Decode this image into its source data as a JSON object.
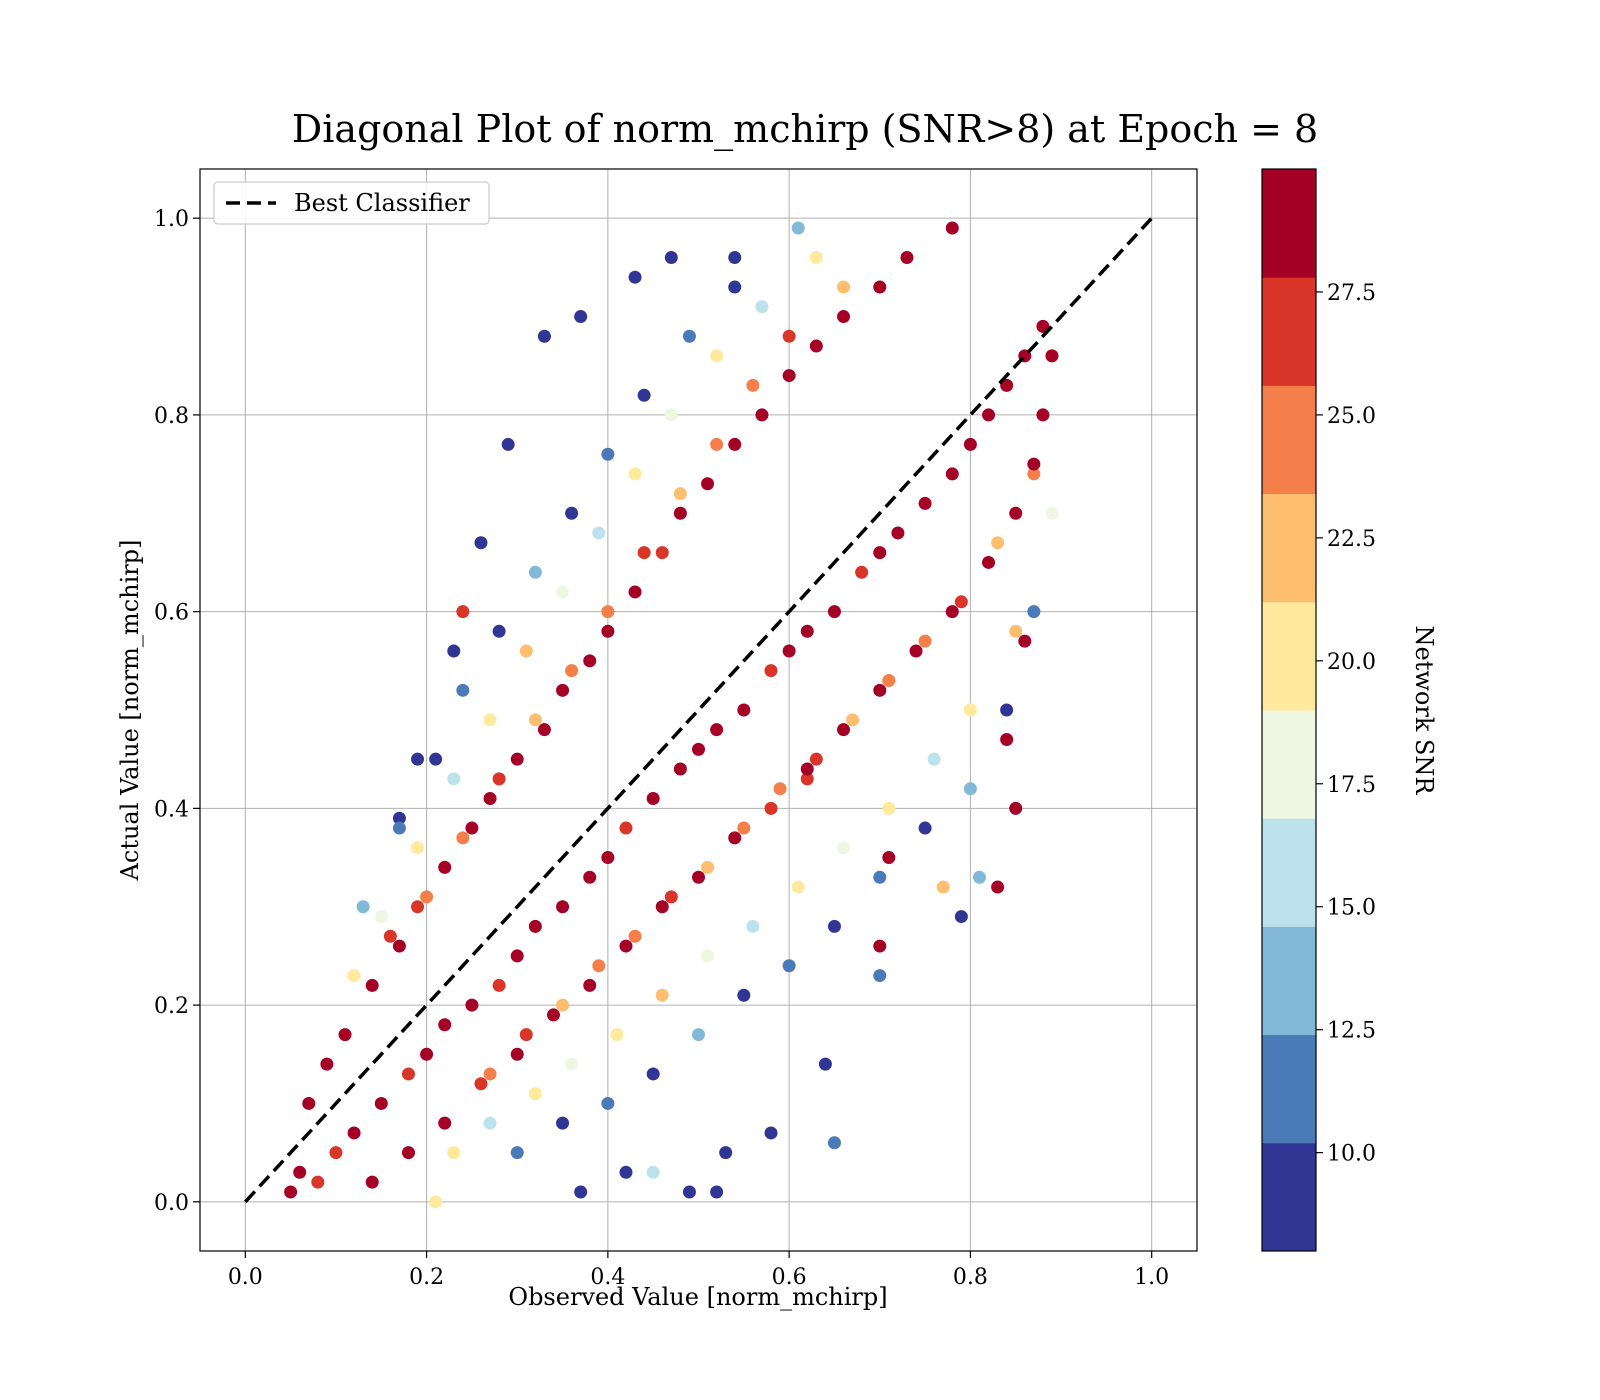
{
  "chart_data": {
    "type": "scatter",
    "title": "Diagonal Plot of norm_mchirp (SNR>8) at Epoch = 8",
    "xlabel": "Observed Value [norm_mchirp]",
    "ylabel": "Actual Value [norm_mchirp]",
    "xlim": [
      -0.05,
      1.05
    ],
    "ylim": [
      -0.05,
      1.05
    ],
    "xticks": [
      0.0,
      0.2,
      0.4,
      0.6,
      0.8,
      1.0
    ],
    "yticks": [
      0.0,
      0.2,
      0.4,
      0.6,
      0.8,
      1.0
    ],
    "xtick_labels": [
      "0.0",
      "0.2",
      "0.4",
      "0.6",
      "0.8",
      "1.0"
    ],
    "ytick_labels": [
      "0.0",
      "0.2",
      "0.4",
      "0.6",
      "0.8",
      "1.0"
    ],
    "grid": true,
    "legend": {
      "position": "top-left",
      "entries": [
        {
          "label": "Best Classifier",
          "style": "dashed",
          "color": "#000000"
        }
      ]
    },
    "reference_line": {
      "label": "Best Classifier",
      "x": [
        0.0,
        1.0
      ],
      "y": [
        0.0,
        1.0
      ]
    },
    "colorbar": {
      "label": "Network SNR",
      "range": [
        8.0,
        30.0
      ],
      "bins": 10,
      "ticks": [
        10.0,
        12.5,
        15.0,
        17.5,
        20.0,
        22.5,
        25.0,
        27.5
      ],
      "tick_labels": [
        "10.0",
        "12.5",
        "15.0",
        "17.5",
        "20.0",
        "22.5",
        "25.0",
        "27.5"
      ],
      "colors": [
        "#313695",
        "#4a7ab7",
        "#82b8d8",
        "#bee2ed",
        "#eef7e1",
        "#fee99d",
        "#fdbe70",
        "#f57f4a",
        "#d93529",
        "#a50026"
      ]
    },
    "points": [
      [
        0.05,
        0.01,
        28
      ],
      [
        0.06,
        0.03,
        29
      ],
      [
        0.08,
        0.02,
        27
      ],
      [
        0.1,
        0.05,
        26
      ],
      [
        0.12,
        0.07,
        28
      ],
      [
        0.15,
        0.1,
        29
      ],
      [
        0.18,
        0.13,
        27
      ],
      [
        0.2,
        0.15,
        29
      ],
      [
        0.22,
        0.18,
        28
      ],
      [
        0.25,
        0.2,
        29
      ],
      [
        0.28,
        0.22,
        27
      ],
      [
        0.3,
        0.25,
        29
      ],
      [
        0.32,
        0.28,
        28
      ],
      [
        0.35,
        0.3,
        29
      ],
      [
        0.38,
        0.33,
        28
      ],
      [
        0.4,
        0.35,
        29
      ],
      [
        0.42,
        0.38,
        27
      ],
      [
        0.45,
        0.41,
        29
      ],
      [
        0.48,
        0.44,
        28
      ],
      [
        0.5,
        0.46,
        29
      ],
      [
        0.52,
        0.48,
        28
      ],
      [
        0.55,
        0.5,
        29
      ],
      [
        0.58,
        0.54,
        27
      ],
      [
        0.6,
        0.56,
        29
      ],
      [
        0.62,
        0.58,
        28
      ],
      [
        0.65,
        0.6,
        29
      ],
      [
        0.68,
        0.64,
        27
      ],
      [
        0.7,
        0.66,
        29
      ],
      [
        0.72,
        0.68,
        28
      ],
      [
        0.75,
        0.71,
        29
      ],
      [
        0.78,
        0.74,
        28
      ],
      [
        0.8,
        0.77,
        29
      ],
      [
        0.82,
        0.8,
        28
      ],
      [
        0.84,
        0.83,
        29
      ],
      [
        0.86,
        0.86,
        28
      ],
      [
        0.88,
        0.89,
        29
      ],
      [
        0.07,
        0.1,
        29
      ],
      [
        0.09,
        0.14,
        28
      ],
      [
        0.11,
        0.17,
        29
      ],
      [
        0.14,
        0.22,
        28
      ],
      [
        0.17,
        0.26,
        29
      ],
      [
        0.19,
        0.3,
        27
      ],
      [
        0.22,
        0.34,
        29
      ],
      [
        0.25,
        0.38,
        28
      ],
      [
        0.27,
        0.41,
        29
      ],
      [
        0.3,
        0.45,
        28
      ],
      [
        0.33,
        0.48,
        29
      ],
      [
        0.35,
        0.52,
        28
      ],
      [
        0.38,
        0.55,
        29
      ],
      [
        0.4,
        0.58,
        28
      ],
      [
        0.43,
        0.62,
        29
      ],
      [
        0.46,
        0.66,
        27
      ],
      [
        0.48,
        0.7,
        29
      ],
      [
        0.51,
        0.73,
        28
      ],
      [
        0.54,
        0.77,
        29
      ],
      [
        0.57,
        0.8,
        28
      ],
      [
        0.6,
        0.84,
        29
      ],
      [
        0.63,
        0.87,
        28
      ],
      [
        0.66,
        0.9,
        29
      ],
      [
        0.7,
        0.93,
        28
      ],
      [
        0.73,
        0.96,
        29
      ],
      [
        0.78,
        0.99,
        28
      ],
      [
        0.14,
        0.02,
        29
      ],
      [
        0.18,
        0.05,
        28
      ],
      [
        0.22,
        0.08,
        29
      ],
      [
        0.26,
        0.12,
        27
      ],
      [
        0.3,
        0.15,
        29
      ],
      [
        0.34,
        0.19,
        28
      ],
      [
        0.38,
        0.22,
        29
      ],
      [
        0.42,
        0.26,
        28
      ],
      [
        0.46,
        0.3,
        29
      ],
      [
        0.5,
        0.33,
        28
      ],
      [
        0.54,
        0.37,
        29
      ],
      [
        0.58,
        0.4,
        27
      ],
      [
        0.62,
        0.44,
        29
      ],
      [
        0.66,
        0.48,
        28
      ],
      [
        0.7,
        0.52,
        29
      ],
      [
        0.74,
        0.56,
        28
      ],
      [
        0.78,
        0.6,
        29
      ],
      [
        0.82,
        0.65,
        28
      ],
      [
        0.85,
        0.7,
        29
      ],
      [
        0.87,
        0.75,
        28
      ],
      [
        0.88,
        0.8,
        29
      ],
      [
        0.89,
        0.86,
        28
      ],
      [
        0.16,
        0.27,
        26
      ],
      [
        0.2,
        0.31,
        25
      ],
      [
        0.24,
        0.37,
        24
      ],
      [
        0.28,
        0.43,
        26
      ],
      [
        0.32,
        0.49,
        23
      ],
      [
        0.36,
        0.54,
        25
      ],
      [
        0.4,
        0.6,
        24
      ],
      [
        0.44,
        0.66,
        26
      ],
      [
        0.48,
        0.72,
        23
      ],
      [
        0.52,
        0.77,
        25
      ],
      [
        0.56,
        0.83,
        24
      ],
      [
        0.6,
        0.88,
        26
      ],
      [
        0.66,
        0.93,
        22
      ],
      [
        0.27,
        0.13,
        25
      ],
      [
        0.31,
        0.17,
        26
      ],
      [
        0.35,
        0.2,
        23
      ],
      [
        0.39,
        0.24,
        24
      ],
      [
        0.43,
        0.27,
        25
      ],
      [
        0.47,
        0.31,
        26
      ],
      [
        0.51,
        0.34,
        23
      ],
      [
        0.55,
        0.38,
        24
      ],
      [
        0.59,
        0.42,
        25
      ],
      [
        0.63,
        0.45,
        26
      ],
      [
        0.67,
        0.49,
        23
      ],
      [
        0.71,
        0.53,
        24
      ],
      [
        0.75,
        0.57,
        25
      ],
      [
        0.79,
        0.61,
        26
      ],
      [
        0.83,
        0.67,
        23
      ],
      [
        0.87,
        0.74,
        24
      ],
      [
        0.12,
        0.23,
        20
      ],
      [
        0.15,
        0.29,
        17
      ],
      [
        0.19,
        0.36,
        21
      ],
      [
        0.23,
        0.43,
        16
      ],
      [
        0.27,
        0.49,
        19
      ],
      [
        0.31,
        0.56,
        22
      ],
      [
        0.35,
        0.62,
        18
      ],
      [
        0.39,
        0.68,
        15
      ],
      [
        0.43,
        0.74,
        20
      ],
      [
        0.47,
        0.8,
        17
      ],
      [
        0.52,
        0.86,
        21
      ],
      [
        0.57,
        0.91,
        16
      ],
      [
        0.63,
        0.96,
        19
      ],
      [
        0.23,
        0.05,
        20
      ],
      [
        0.27,
        0.08,
        16
      ],
      [
        0.32,
        0.11,
        21
      ],
      [
        0.36,
        0.14,
        17
      ],
      [
        0.41,
        0.17,
        19
      ],
      [
        0.46,
        0.21,
        22
      ],
      [
        0.51,
        0.25,
        18
      ],
      [
        0.56,
        0.28,
        15
      ],
      [
        0.61,
        0.32,
        20
      ],
      [
        0.66,
        0.36,
        17
      ],
      [
        0.71,
        0.4,
        21
      ],
      [
        0.76,
        0.45,
        16
      ],
      [
        0.8,
        0.5,
        19
      ],
      [
        0.85,
        0.58,
        22
      ],
      [
        0.89,
        0.7,
        18
      ],
      [
        0.13,
        0.3,
        13
      ],
      [
        0.17,
        0.38,
        12
      ],
      [
        0.21,
        0.45,
        9
      ],
      [
        0.24,
        0.52,
        11
      ],
      [
        0.28,
        0.58,
        10
      ],
      [
        0.32,
        0.64,
        13
      ],
      [
        0.36,
        0.7,
        9
      ],
      [
        0.4,
        0.76,
        12
      ],
      [
        0.44,
        0.82,
        10
      ],
      [
        0.49,
        0.88,
        11
      ],
      [
        0.54,
        0.93,
        9
      ],
      [
        0.61,
        0.99,
        13
      ],
      [
        0.3,
        0.05,
        12
      ],
      [
        0.35,
        0.08,
        9
      ],
      [
        0.4,
        0.1,
        11
      ],
      [
        0.45,
        0.13,
        10
      ],
      [
        0.5,
        0.17,
        13
      ],
      [
        0.55,
        0.21,
        9
      ],
      [
        0.6,
        0.24,
        12
      ],
      [
        0.65,
        0.28,
        10
      ],
      [
        0.7,
        0.33,
        11
      ],
      [
        0.75,
        0.38,
        9
      ],
      [
        0.8,
        0.42,
        13
      ],
      [
        0.84,
        0.5,
        10
      ],
      [
        0.87,
        0.6,
        12
      ],
      [
        0.33,
        0.88,
        9
      ],
      [
        0.37,
        0.9,
        10
      ],
      [
        0.43,
        0.94,
        9
      ],
      [
        0.47,
        0.96,
        9
      ],
      [
        0.54,
        0.96,
        10
      ],
      [
        0.29,
        0.77,
        9
      ],
      [
        0.26,
        0.67,
        9
      ],
      [
        0.23,
        0.56,
        9
      ],
      [
        0.19,
        0.45,
        10
      ],
      [
        0.17,
        0.39,
        9
      ],
      [
        0.37,
        0.01,
        9
      ],
      [
        0.42,
        0.03,
        9
      ],
      [
        0.49,
        0.01,
        10
      ],
      [
        0.53,
        0.05,
        9
      ],
      [
        0.58,
        0.07,
        9
      ],
      [
        0.64,
        0.14,
        9
      ],
      [
        0.65,
        0.06,
        11
      ],
      [
        0.7,
        0.23,
        11
      ],
      [
        0.79,
        0.29,
        9
      ],
      [
        0.83,
        0.32,
        29
      ],
      [
        0.81,
        0.33,
        14
      ],
      [
        0.85,
        0.4,
        28
      ],
      [
        0.84,
        0.47,
        29
      ],
      [
        0.86,
        0.57,
        28
      ],
      [
        0.21,
        0.0,
        21
      ],
      [
        0.45,
        0.03,
        16
      ],
      [
        0.52,
        0.01,
        10
      ],
      [
        0.77,
        0.32,
        22
      ],
      [
        0.62,
        0.43,
        27
      ],
      [
        0.24,
        0.6,
        26
      ],
      [
        0.71,
        0.35,
        28
      ],
      [
        0.7,
        0.26,
        29
      ]
    ]
  }
}
